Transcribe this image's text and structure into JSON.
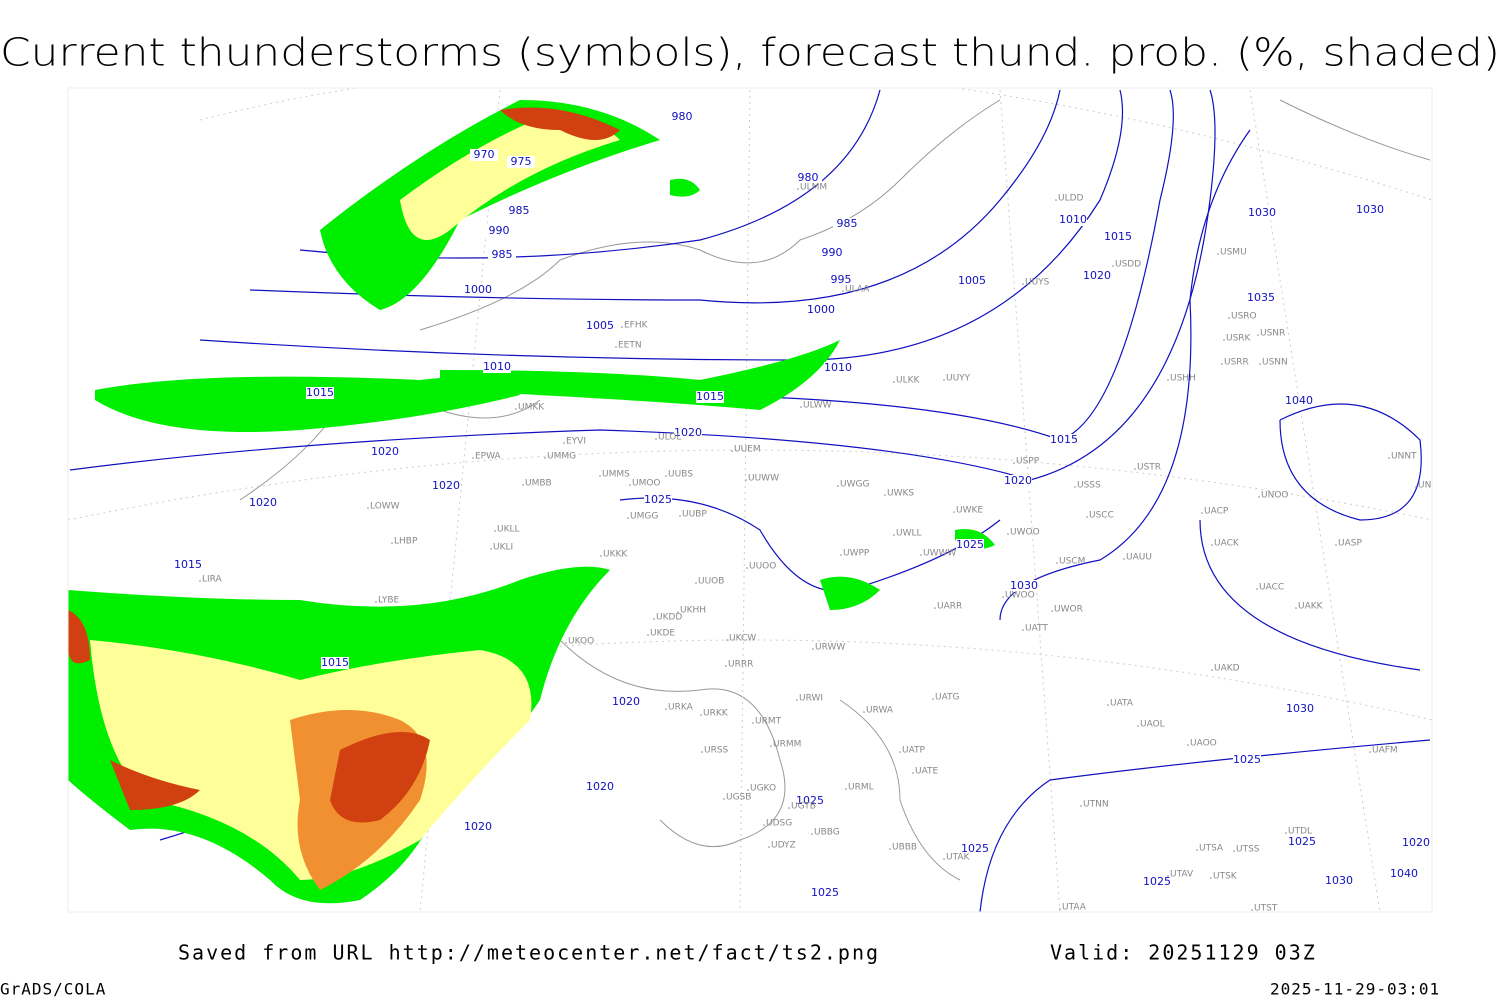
{
  "header": {
    "title": "Current thunderstorms (symbols), forecast thund. prob. (%, shaded)"
  },
  "isobar_labels": [
    "980",
    "970",
    "975",
    "980",
    "985",
    "985",
    "990",
    "990",
    "985",
    "995",
    "1000",
    "1000",
    "1005",
    "1005",
    "1010",
    "1010",
    "1015",
    "1015",
    "1020",
    "1020",
    "1020",
    "1020",
    "1015",
    "1025",
    "1025",
    "1030",
    "1015",
    "1020",
    "1010",
    "1015",
    "1020",
    "1030",
    "1030",
    "1035",
    "1040",
    "1015",
    "1020",
    "1020",
    "1020",
    "1025",
    "1025",
    "1025",
    "1025",
    "1025",
    "1030",
    "1030",
    "1025",
    "1020",
    "1040"
  ],
  "stations": [
    "ULMM",
    "ULDD",
    "ULAA",
    "UUYS",
    "USDD",
    "USMU",
    "USRO",
    "USRK",
    "USNR",
    "USRR",
    "USNN",
    "USHH",
    "ULKK",
    "UUYY",
    "EFHK",
    "EETN",
    "ULWW",
    "UMKK",
    "EYVI",
    "ULOL",
    "UUEM",
    "EPWA",
    "UMMG",
    "UMMS",
    "UMOO",
    "UUBS",
    "UUWW",
    "UWGG",
    "UWKS",
    "UMBB",
    "USPP",
    "USSS",
    "USTR",
    "UNNT",
    "UNBB",
    "UNOO",
    "UWKE",
    "USCC",
    "UACP",
    "UMGG",
    "UUBP",
    "UKLL",
    "UKLI",
    "UKKK",
    "UWPP",
    "UWWW",
    "UWLL",
    "USCM",
    "UAUU",
    "UACK",
    "UASP",
    "UUOO",
    "UUOB",
    "UWOO",
    "UWOO",
    "UWOR",
    "UACC",
    "UAKK",
    "UATT",
    "UARR",
    "LOWW",
    "LHBP",
    "LYBE",
    "LIRA",
    "UKDD",
    "UKHH",
    "UKOO",
    "UKDE",
    "UKCW",
    "URRR",
    "URWW",
    "URWI",
    "UATG",
    "UAKD",
    "UATA",
    "UAOL",
    "UAOO",
    "UAFM",
    "URKA",
    "URKK",
    "URMT",
    "URMM",
    "URSS",
    "URWA",
    "UATE",
    "UATP",
    "URML",
    "UGKO",
    "UGSB",
    "UGTB",
    "UDSG",
    "UBBB",
    "UBBG",
    "UTAK",
    "UTNN",
    "UTSA",
    "UTSS",
    "UTSK",
    "UTDL",
    "UTAV",
    "UTAA",
    "UTST",
    "UDYZ"
  ],
  "footer": {
    "saved": "Saved from URL http://meteocenter.net/fact/ts2.png",
    "valid": "Valid: 20251129 03Z",
    "software": "GrADS/COLA",
    "timestamp": "2025-11-29-03:01"
  }
}
